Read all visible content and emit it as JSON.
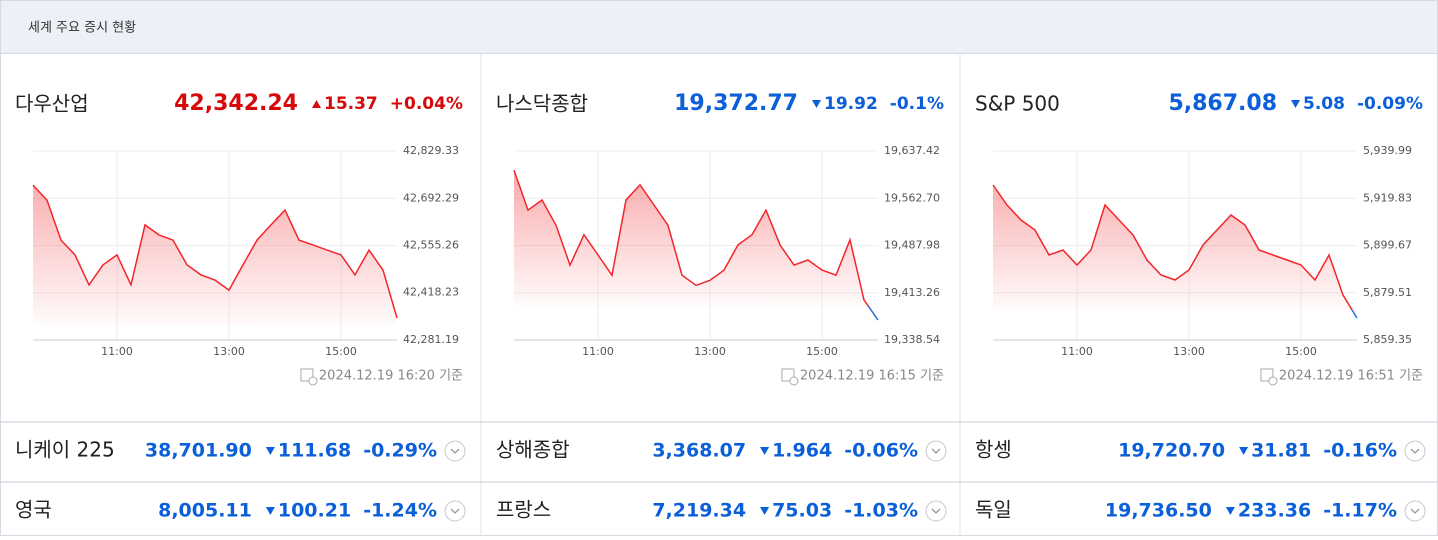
{
  "header": {
    "title": "세계 주요 증시 현황"
  },
  "panels": [
    {
      "name": "다우산업",
      "price": "42,342.24",
      "direction": "up",
      "change": "15.37",
      "change_pct": "+0.04%",
      "updated": "2024.12.19 16:20 기준"
    },
    {
      "name": "나스닥종합",
      "price": "19,372.77",
      "direction": "down",
      "change": "19.92",
      "change_pct": "-0.1%",
      "updated": "2024.12.19 16:15 기준"
    },
    {
      "name": "S&P 500",
      "price": "5,867.08",
      "direction": "down",
      "change": "5.08",
      "change_pct": "-0.09%",
      "updated": "2024.12.19 16:51 기준"
    }
  ],
  "chart_data": [
    {
      "type": "line",
      "color": "#f2262a",
      "below_color": "#2a72dc",
      "grid": true,
      "x": [
        "09:30",
        "09:45",
        "10:00",
        "10:15",
        "10:30",
        "10:45",
        "11:00",
        "11:15",
        "11:30",
        "11:45",
        "12:00",
        "12:15",
        "12:30",
        "12:45",
        "13:00",
        "13:15",
        "13:30",
        "13:45",
        "14:00",
        "14:15",
        "14:30",
        "14:45",
        "15:00",
        "15:15",
        "15:30",
        "15:45",
        "16:00"
      ],
      "values": [
        42730,
        42687,
        42571,
        42528,
        42441,
        42499,
        42528,
        42441,
        42615,
        42586,
        42571,
        42499,
        42470,
        42455,
        42426,
        42499,
        42571,
        42615,
        42658,
        42571,
        42557,
        42542,
        42528,
        42470,
        42542,
        42484,
        42345
      ],
      "xlim": [
        "09:30",
        "16:00"
      ],
      "xticks": [
        "11:00",
        "13:00",
        "15:00"
      ],
      "ylim": [
        42281.19,
        42829.33
      ],
      "yticks": [
        {
          "value": 42281.19,
          "label": "42,281.19"
        },
        {
          "value": 42418.23,
          "label": "42,418.23"
        },
        {
          "value": 42555.26,
          "label": "42,555.26"
        },
        {
          "value": 42692.29,
          "label": "42,692.29"
        },
        {
          "value": 42829.33,
          "label": "42,829.33"
        }
      ]
    },
    {
      "type": "line",
      "color": "#f2262a",
      "below_color": "#2a72dc",
      "grid": true,
      "x": [
        "09:30",
        "09:45",
        "10:00",
        "10:15",
        "10:30",
        "10:45",
        "11:00",
        "11:15",
        "11:30",
        "11:45",
        "12:00",
        "12:15",
        "12:30",
        "12:45",
        "13:00",
        "13:15",
        "13:30",
        "13:45",
        "14:00",
        "14:15",
        "14:30",
        "14:45",
        "15:00",
        "15:15",
        "15:30",
        "15:45",
        "16:00"
      ],
      "values": [
        19607,
        19544,
        19560,
        19520,
        19457,
        19505,
        19473,
        19441,
        19560,
        19584,
        19552,
        19520,
        19441,
        19425,
        19433,
        19449,
        19489,
        19505,
        19544,
        19489,
        19457,
        19465,
        19449,
        19441,
        19497,
        19402,
        19370
      ],
      "xlim": [
        "09:30",
        "16:00"
      ],
      "xticks": [
        "11:00",
        "13:00",
        "15:00"
      ],
      "ylim": [
        19338.54,
        19637.42
      ],
      "yticks": [
        {
          "value": 19338.54,
          "label": "19,338.54"
        },
        {
          "value": 19413.26,
          "label": "19,413.26"
        },
        {
          "value": 19487.98,
          "label": "19,487.98"
        },
        {
          "value": 19562.7,
          "label": "19,562.70"
        },
        {
          "value": 19637.42,
          "label": "19,637.42"
        }
      ]
    },
    {
      "type": "line",
      "color": "#f2262a",
      "below_color": "#2a72dc",
      "grid": true,
      "x": [
        "09:30",
        "09:45",
        "10:00",
        "10:15",
        "10:30",
        "10:45",
        "11:00",
        "11:15",
        "11:30",
        "11:45",
        "12:00",
        "12:15",
        "12:30",
        "12:45",
        "13:00",
        "13:15",
        "13:30",
        "13:45",
        "14:00",
        "14:15",
        "14:30",
        "14:45",
        "15:00",
        "15:15",
        "15:30",
        "15:45",
        "16:00"
      ],
      "values": [
        5925.5,
        5916.95,
        5910.55,
        5906.3,
        5895.6,
        5897.75,
        5891.35,
        5897.75,
        5916.95,
        5910.55,
        5904.15,
        5893.5,
        5887.1,
        5884.95,
        5889.2,
        5899.9,
        5906.3,
        5912.7,
        5908.4,
        5897.75,
        5895.6,
        5893.5,
        5891.35,
        5884.95,
        5895.6,
        5878.55,
        5868.7
      ],
      "xlim": [
        "09:30",
        "16:00"
      ],
      "xticks": [
        "11:00",
        "13:00",
        "15:00"
      ],
      "ylim": [
        5859.35,
        5939.99
      ],
      "yticks": [
        {
          "value": 5859.35,
          "label": "5,859.35"
        },
        {
          "value": 5879.51,
          "label": "5,879.51"
        },
        {
          "value": 5899.67,
          "label": "5,899.67"
        },
        {
          "value": 5919.83,
          "label": "5,919.83"
        },
        {
          "value": 5939.99,
          "label": "5,939.99"
        }
      ]
    }
  ],
  "markets": [
    {
      "name": "니케이 225",
      "price": "38,701.90",
      "direction": "down",
      "change": "111.68",
      "change_pct": "-0.29%"
    },
    {
      "name": "상해종합",
      "price": "3,368.07",
      "direction": "down",
      "change": "1.964",
      "change_pct": "-0.06%"
    },
    {
      "name": "항셍",
      "price": "19,720.70",
      "direction": "down",
      "change": "31.81",
      "change_pct": "-0.16%"
    },
    {
      "name": "영국",
      "price": "8,005.11",
      "direction": "down",
      "change": "100.21",
      "change_pct": "-1.24%"
    },
    {
      "name": "프랑스",
      "price": "7,219.34",
      "direction": "down",
      "change": "75.03",
      "change_pct": "-1.03%"
    },
    {
      "name": "독일",
      "price": "19,736.50",
      "direction": "down",
      "change": "233.36",
      "change_pct": "-1.17%"
    }
  ]
}
